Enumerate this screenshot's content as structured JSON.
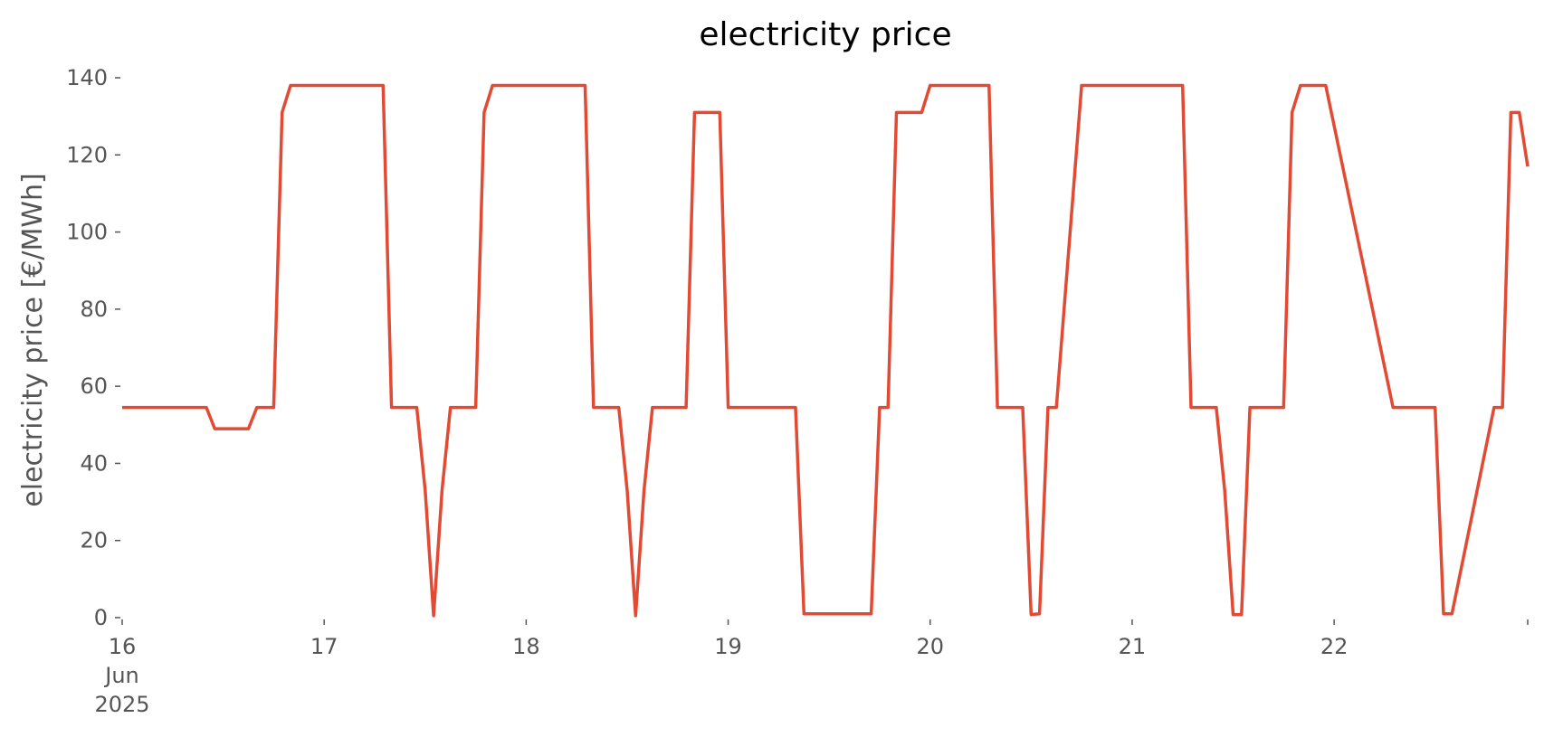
{
  "chart_data": {
    "type": "line",
    "title": "electricity price",
    "xlabel": "",
    "ylabel": "electricity price [€/MWh]",
    "ylim": [
      0,
      140
    ],
    "xlim": [
      "2025-06-16 00:00",
      "2025-06-22 23:00"
    ],
    "grid": false,
    "y_ticks": [
      {
        "value": 0,
        "label": "0"
      },
      {
        "value": 20,
        "label": "20"
      },
      {
        "value": 40,
        "label": "40"
      },
      {
        "value": 60,
        "label": "60"
      },
      {
        "value": 80,
        "label": "80"
      },
      {
        "value": 100,
        "label": "100"
      },
      {
        "value": 120,
        "label": "120"
      },
      {
        "value": 140,
        "label": "140"
      }
    ],
    "x_ticks": [
      {
        "value": "2025-06-16",
        "label": "16\nJun\n2025"
      },
      {
        "value": "2025-06-17",
        "label": "17"
      },
      {
        "value": "2025-06-18",
        "label": "18"
      },
      {
        "value": "2025-06-19",
        "label": "19"
      },
      {
        "value": "2025-06-20",
        "label": "20"
      },
      {
        "value": "2025-06-21",
        "label": "21"
      },
      {
        "value": "2025-06-22",
        "label": "22"
      },
      {
        "value": "2025-06-22 23:00",
        "label": ""
      }
    ],
    "series": [
      {
        "color": "#e24a33",
        "x": [
          "2025-06-16 00:00",
          "2025-06-16 10:00",
          "2025-06-16 11:00",
          "2025-06-16 15:00",
          "2025-06-16 16:00",
          "2025-06-16 18:00",
          "2025-06-16 19:00",
          "2025-06-16 20:00",
          "2025-06-17 07:00",
          "2025-06-17 08:00",
          "2025-06-17 11:00",
          "2025-06-17 12:00",
          "2025-06-17 13:00",
          "2025-06-17 14:00",
          "2025-06-17 15:00",
          "2025-06-17 18:00",
          "2025-06-17 19:00",
          "2025-06-17 20:00",
          "2025-06-18 07:00",
          "2025-06-18 08:00",
          "2025-06-18 11:00",
          "2025-06-18 12:00",
          "2025-06-18 13:00",
          "2025-06-18 14:00",
          "2025-06-18 15:00",
          "2025-06-18 19:00",
          "2025-06-18 20:00",
          "2025-06-18 23:00",
          "2025-06-19 00:00",
          "2025-06-19 08:00",
          "2025-06-19 09:00",
          "2025-06-19 17:00",
          "2025-06-19 18:00",
          "2025-06-19 19:00",
          "2025-06-19 20:00",
          "2025-06-19 23:00",
          "2025-06-20 00:00",
          "2025-06-20 07:00",
          "2025-06-20 08:00",
          "2025-06-20 11:00",
          "2025-06-20 12:00",
          "2025-06-20 13:00",
          "2025-06-20 14:00",
          "2025-06-20 15:00",
          "2025-06-20 18:00",
          "2025-06-20 19:00",
          "2025-06-21 06:00",
          "2025-06-21 07:00",
          "2025-06-21 10:00",
          "2025-06-21 11:00",
          "2025-06-21 12:00",
          "2025-06-21 13:00",
          "2025-06-21 14:00",
          "2025-06-21 18:00",
          "2025-06-21 19:00",
          "2025-06-21 20:00",
          "2025-06-21 23:00",
          "2025-06-22 07:00",
          "2025-06-22 08:00",
          "2025-06-22 12:00",
          "2025-06-22 13:00",
          "2025-06-22 14:00",
          "2025-06-22 19:00",
          "2025-06-22 20:00",
          "2025-06-22 21:00",
          "2025-06-22 22:00",
          "2025-06-22 23:00"
        ],
        "y": [
          54.5,
          54.5,
          49,
          49,
          54.5,
          54.5,
          131,
          138,
          138,
          54.5,
          54.5,
          33,
          0.5,
          33,
          54.5,
          54.5,
          131,
          138,
          138,
          54.5,
          54.5,
          33,
          0.5,
          33,
          54.5,
          54.5,
          131,
          131,
          54.5,
          54.5,
          1,
          1,
          54.5,
          54.5,
          131,
          131,
          138,
          138,
          54.5,
          54.5,
          0.8,
          1,
          54.5,
          54.5,
          138,
          138,
          138,
          54.5,
          54.5,
          33,
          0.8,
          0.8,
          54.5,
          54.5,
          131,
          138,
          138,
          54.5,
          54.5,
          54.5,
          1,
          1,
          54.5,
          54.5,
          131,
          131,
          117
        ]
      }
    ]
  }
}
